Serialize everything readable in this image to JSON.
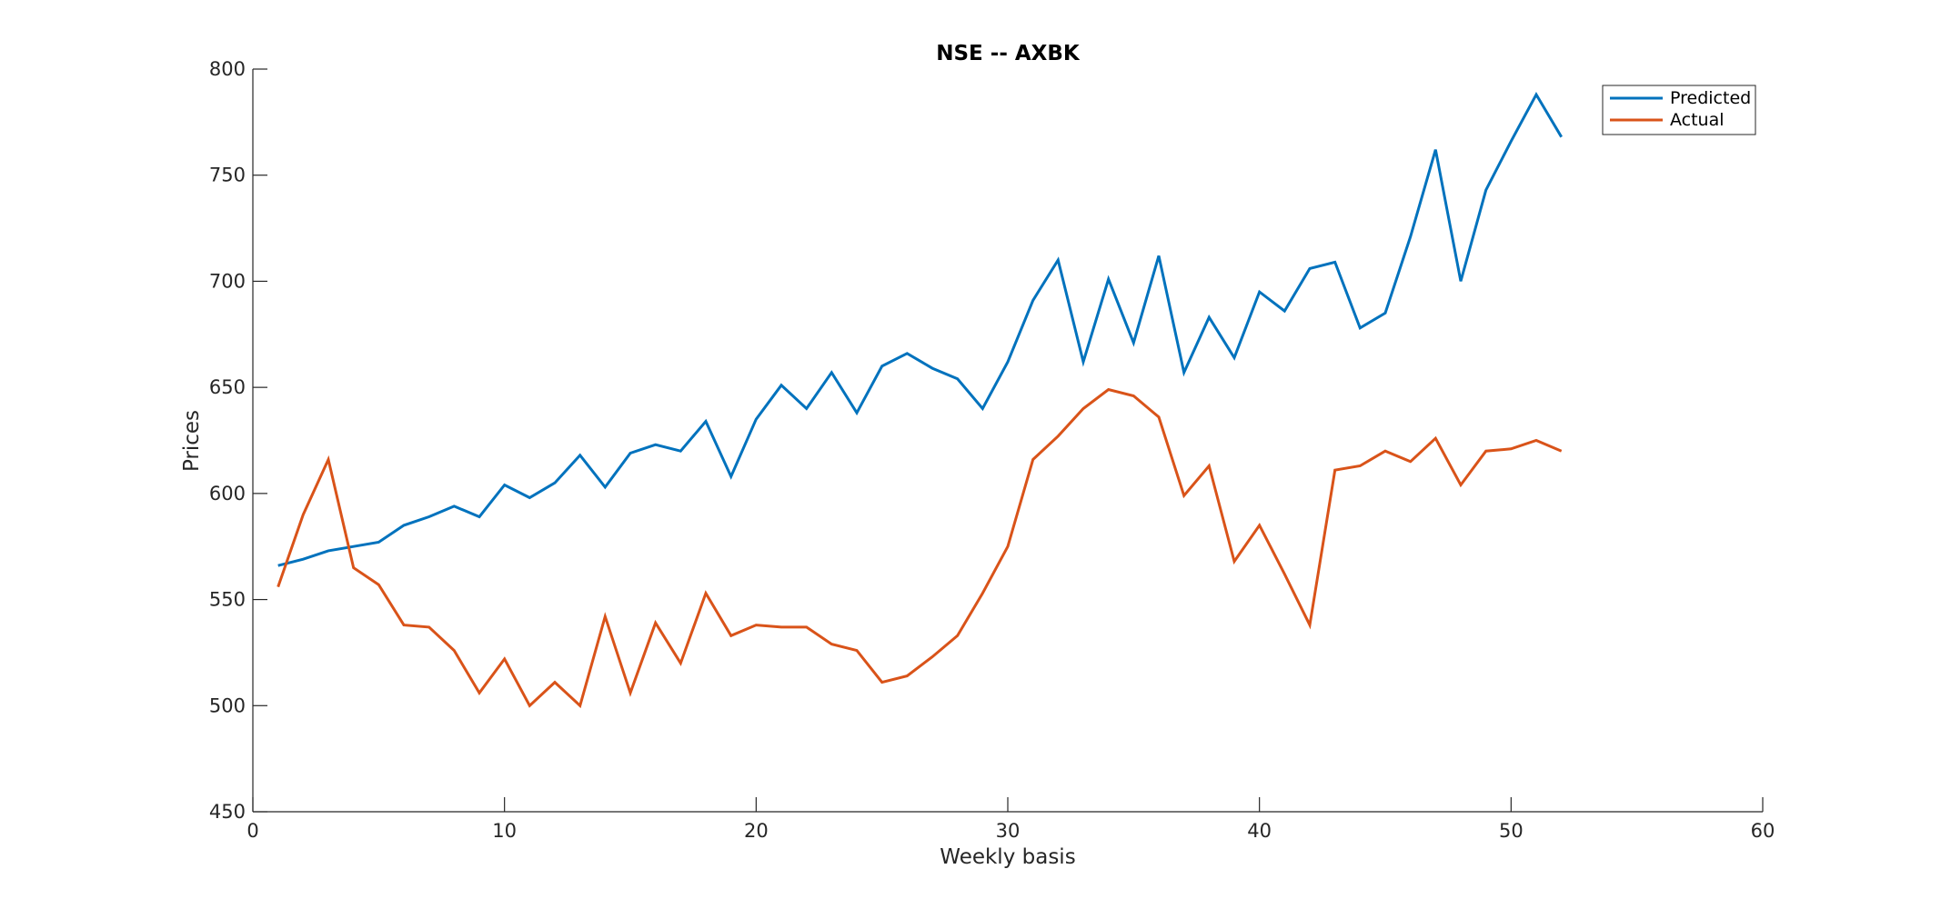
{
  "chart_data": {
    "type": "line",
    "title": "NSE -- AXBK",
    "xlabel": "Weekly basis",
    "ylabel": "Prices",
    "xlim": [
      0,
      60
    ],
    "ylim": [
      450,
      800
    ],
    "xticks": [
      0,
      10,
      20,
      30,
      40,
      50,
      60
    ],
    "yticks": [
      450,
      500,
      550,
      600,
      650,
      700,
      750,
      800
    ],
    "grid": false,
    "legend_position": "top-right",
    "x": [
      1,
      2,
      3,
      4,
      5,
      6,
      7,
      8,
      9,
      10,
      11,
      12,
      13,
      14,
      15,
      16,
      17,
      18,
      19,
      20,
      21,
      22,
      23,
      24,
      25,
      26,
      27,
      28,
      29,
      30,
      31,
      32,
      33,
      34,
      35,
      36,
      37,
      38,
      39,
      40,
      41,
      42,
      43,
      44,
      45,
      46,
      47,
      48,
      49,
      50,
      51,
      52
    ],
    "series": [
      {
        "name": "Predicted",
        "color": "#0072BD",
        "values": [
          566,
          569,
          573,
          575,
          577,
          585,
          589,
          594,
          589,
          604,
          598,
          605,
          618,
          603,
          619,
          623,
          620,
          634,
          608,
          635,
          651,
          640,
          657,
          638,
          660,
          666,
          659,
          654,
          640,
          662,
          691,
          710,
          662,
          701,
          671,
          712,
          657,
          683,
          664,
          695,
          686,
          706,
          709,
          678,
          685,
          721,
          762,
          700,
          743,
          766,
          788,
          768
        ]
      },
      {
        "name": "Actual",
        "color": "#D95319",
        "values": [
          556,
          590,
          616,
          565,
          557,
          538,
          537,
          526,
          506,
          522,
          500,
          511,
          500,
          542,
          506,
          539,
          520,
          553,
          533,
          538,
          537,
          537,
          529,
          526,
          511,
          514,
          523,
          533,
          553,
          575,
          616,
          627,
          640,
          649,
          646,
          636,
          599,
          613,
          568,
          585,
          562,
          538,
          611,
          613,
          620,
          615,
          626,
          604,
          620,
          621,
          625,
          620
        ]
      }
    ]
  }
}
